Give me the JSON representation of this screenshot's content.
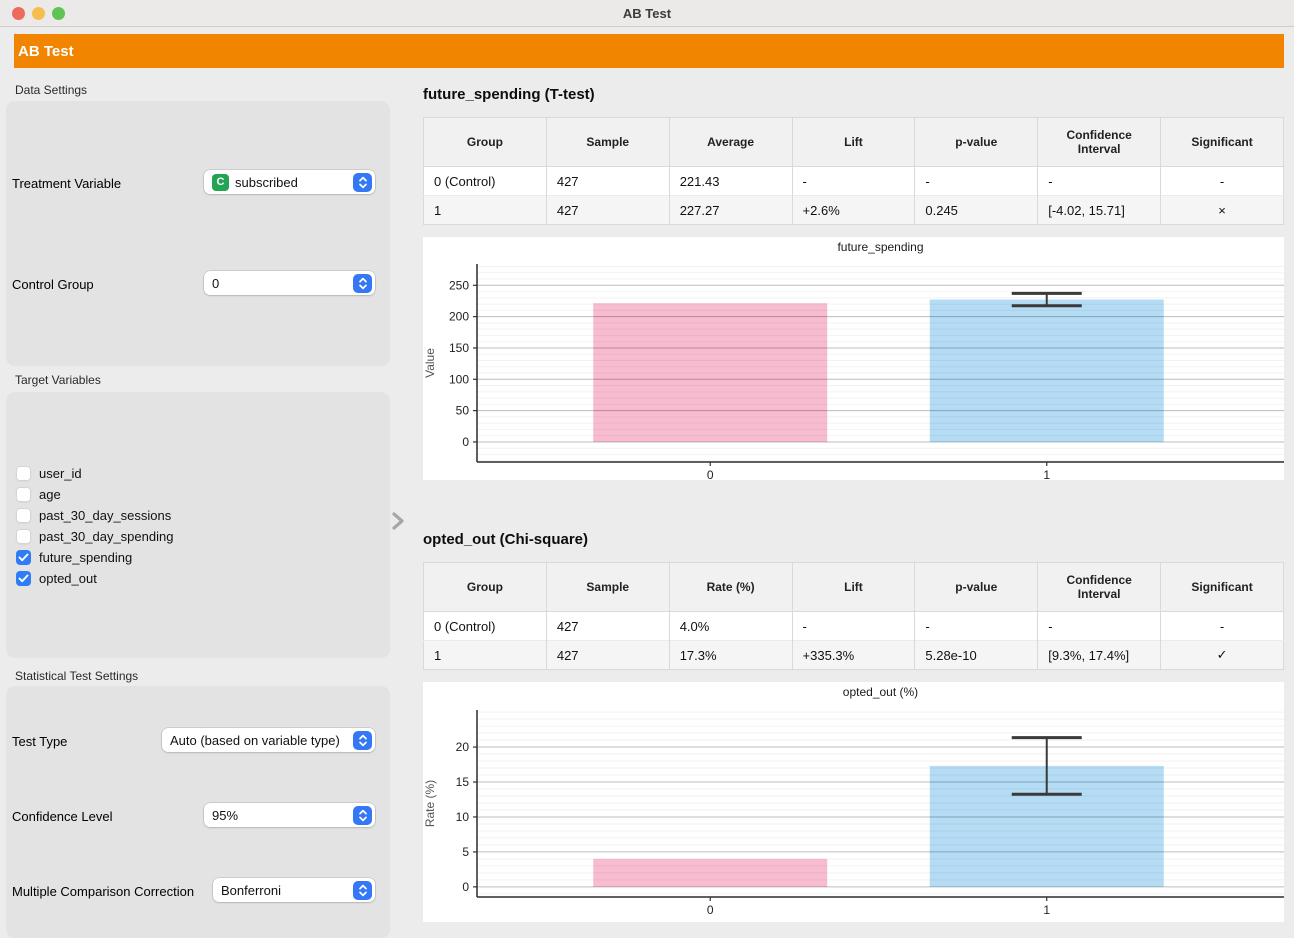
{
  "window": {
    "title": "AB Test"
  },
  "banner": {
    "title": "AB Test",
    "color": "#f28500"
  },
  "icons": {
    "dropdown_stepper": "up-down-chevrons",
    "splitter": "chevron-right",
    "checkbox_checked": "checkmark"
  },
  "colors": {
    "accent_blue": "#3478f6",
    "badge_green": "#23a455",
    "banner_orange": "#f28500",
    "error_bar": "#3a3a3a"
  },
  "sidebar": {
    "sections": [
      {
        "title": "Data Settings",
        "controls": [
          {
            "label": "Treatment Variable",
            "value": "subscribed",
            "badge": "C"
          },
          {
            "label": "Control Group",
            "value": "0"
          }
        ]
      },
      {
        "title": "Target Variables",
        "checkboxes": [
          {
            "label": "user_id",
            "checked": false
          },
          {
            "label": "age",
            "checked": false
          },
          {
            "label": "past_30_day_sessions",
            "checked": false
          },
          {
            "label": "past_30_day_spending",
            "checked": false
          },
          {
            "label": "future_spending",
            "checked": true
          },
          {
            "label": "opted_out",
            "checked": true
          }
        ]
      },
      {
        "title": "Statistical Test Settings",
        "controls": [
          {
            "label": "Test Type",
            "value": "Auto (based on variable type)"
          },
          {
            "label": "Confidence Level",
            "value": "95%"
          },
          {
            "label": "Multiple Comparison Correction",
            "value": "Bonferroni"
          }
        ]
      }
    ]
  },
  "results": [
    {
      "heading": "future_spending (T-test)",
      "table": {
        "headers": [
          "Group",
          "Sample",
          "Average",
          "Lift",
          "p-value",
          "Confidence Interval",
          "Significant"
        ],
        "rows": [
          [
            "0 (Control)",
            "427",
            "221.43",
            "-",
            "-",
            "-",
            "-"
          ],
          [
            "1",
            "427",
            "227.27",
            "+2.6%",
            "0.245",
            "[-4.02, 15.71]",
            "×"
          ]
        ]
      }
    },
    {
      "heading": "opted_out (Chi-square)",
      "table": {
        "headers": [
          "Group",
          "Sample",
          "Rate (%)",
          "Lift",
          "p-value",
          "Confidence Interval",
          "Significant"
        ],
        "rows": [
          [
            "0 (Control)",
            "427",
            "4.0%",
            "-",
            "-",
            "-",
            "-"
          ],
          [
            "1",
            "427",
            "17.3%",
            "+335.3%",
            "5.28e-10",
            "[9.3%, 17.4%]",
            "✓"
          ]
        ]
      }
    }
  ],
  "chart_data": [
    {
      "type": "bar",
      "title": "future_spending",
      "xlabel": "",
      "ylabel": "Value",
      "categories": [
        "0",
        "1"
      ],
      "values": [
        221.43,
        227.27
      ],
      "bar_colors": [
        "#f8bcd0",
        "#b5dcf5"
      ],
      "error_bars": [
        null,
        {
          "low": 217.4,
          "high": 237.1
        }
      ],
      "y_ticks": [
        0,
        50,
        100,
        150,
        200,
        250
      ],
      "minor_step": 10,
      "ylim": [
        -32,
        284
      ],
      "grid": true,
      "legend": false
    },
    {
      "type": "bar",
      "title": "opted_out (%)",
      "xlabel": "",
      "ylabel": "Rate (%)",
      "categories": [
        "0",
        "1"
      ],
      "values": [
        4.0,
        17.3
      ],
      "bar_colors": [
        "#f8bcd0",
        "#b5dcf5"
      ],
      "error_bars": [
        null,
        {
          "low": 13.25,
          "high": 21.35
        }
      ],
      "y_ticks": [
        0,
        5,
        10,
        15,
        20
      ],
      "minor_step": 1,
      "ylim": [
        -1.45,
        25.3
      ],
      "grid": true,
      "legend": false
    }
  ]
}
